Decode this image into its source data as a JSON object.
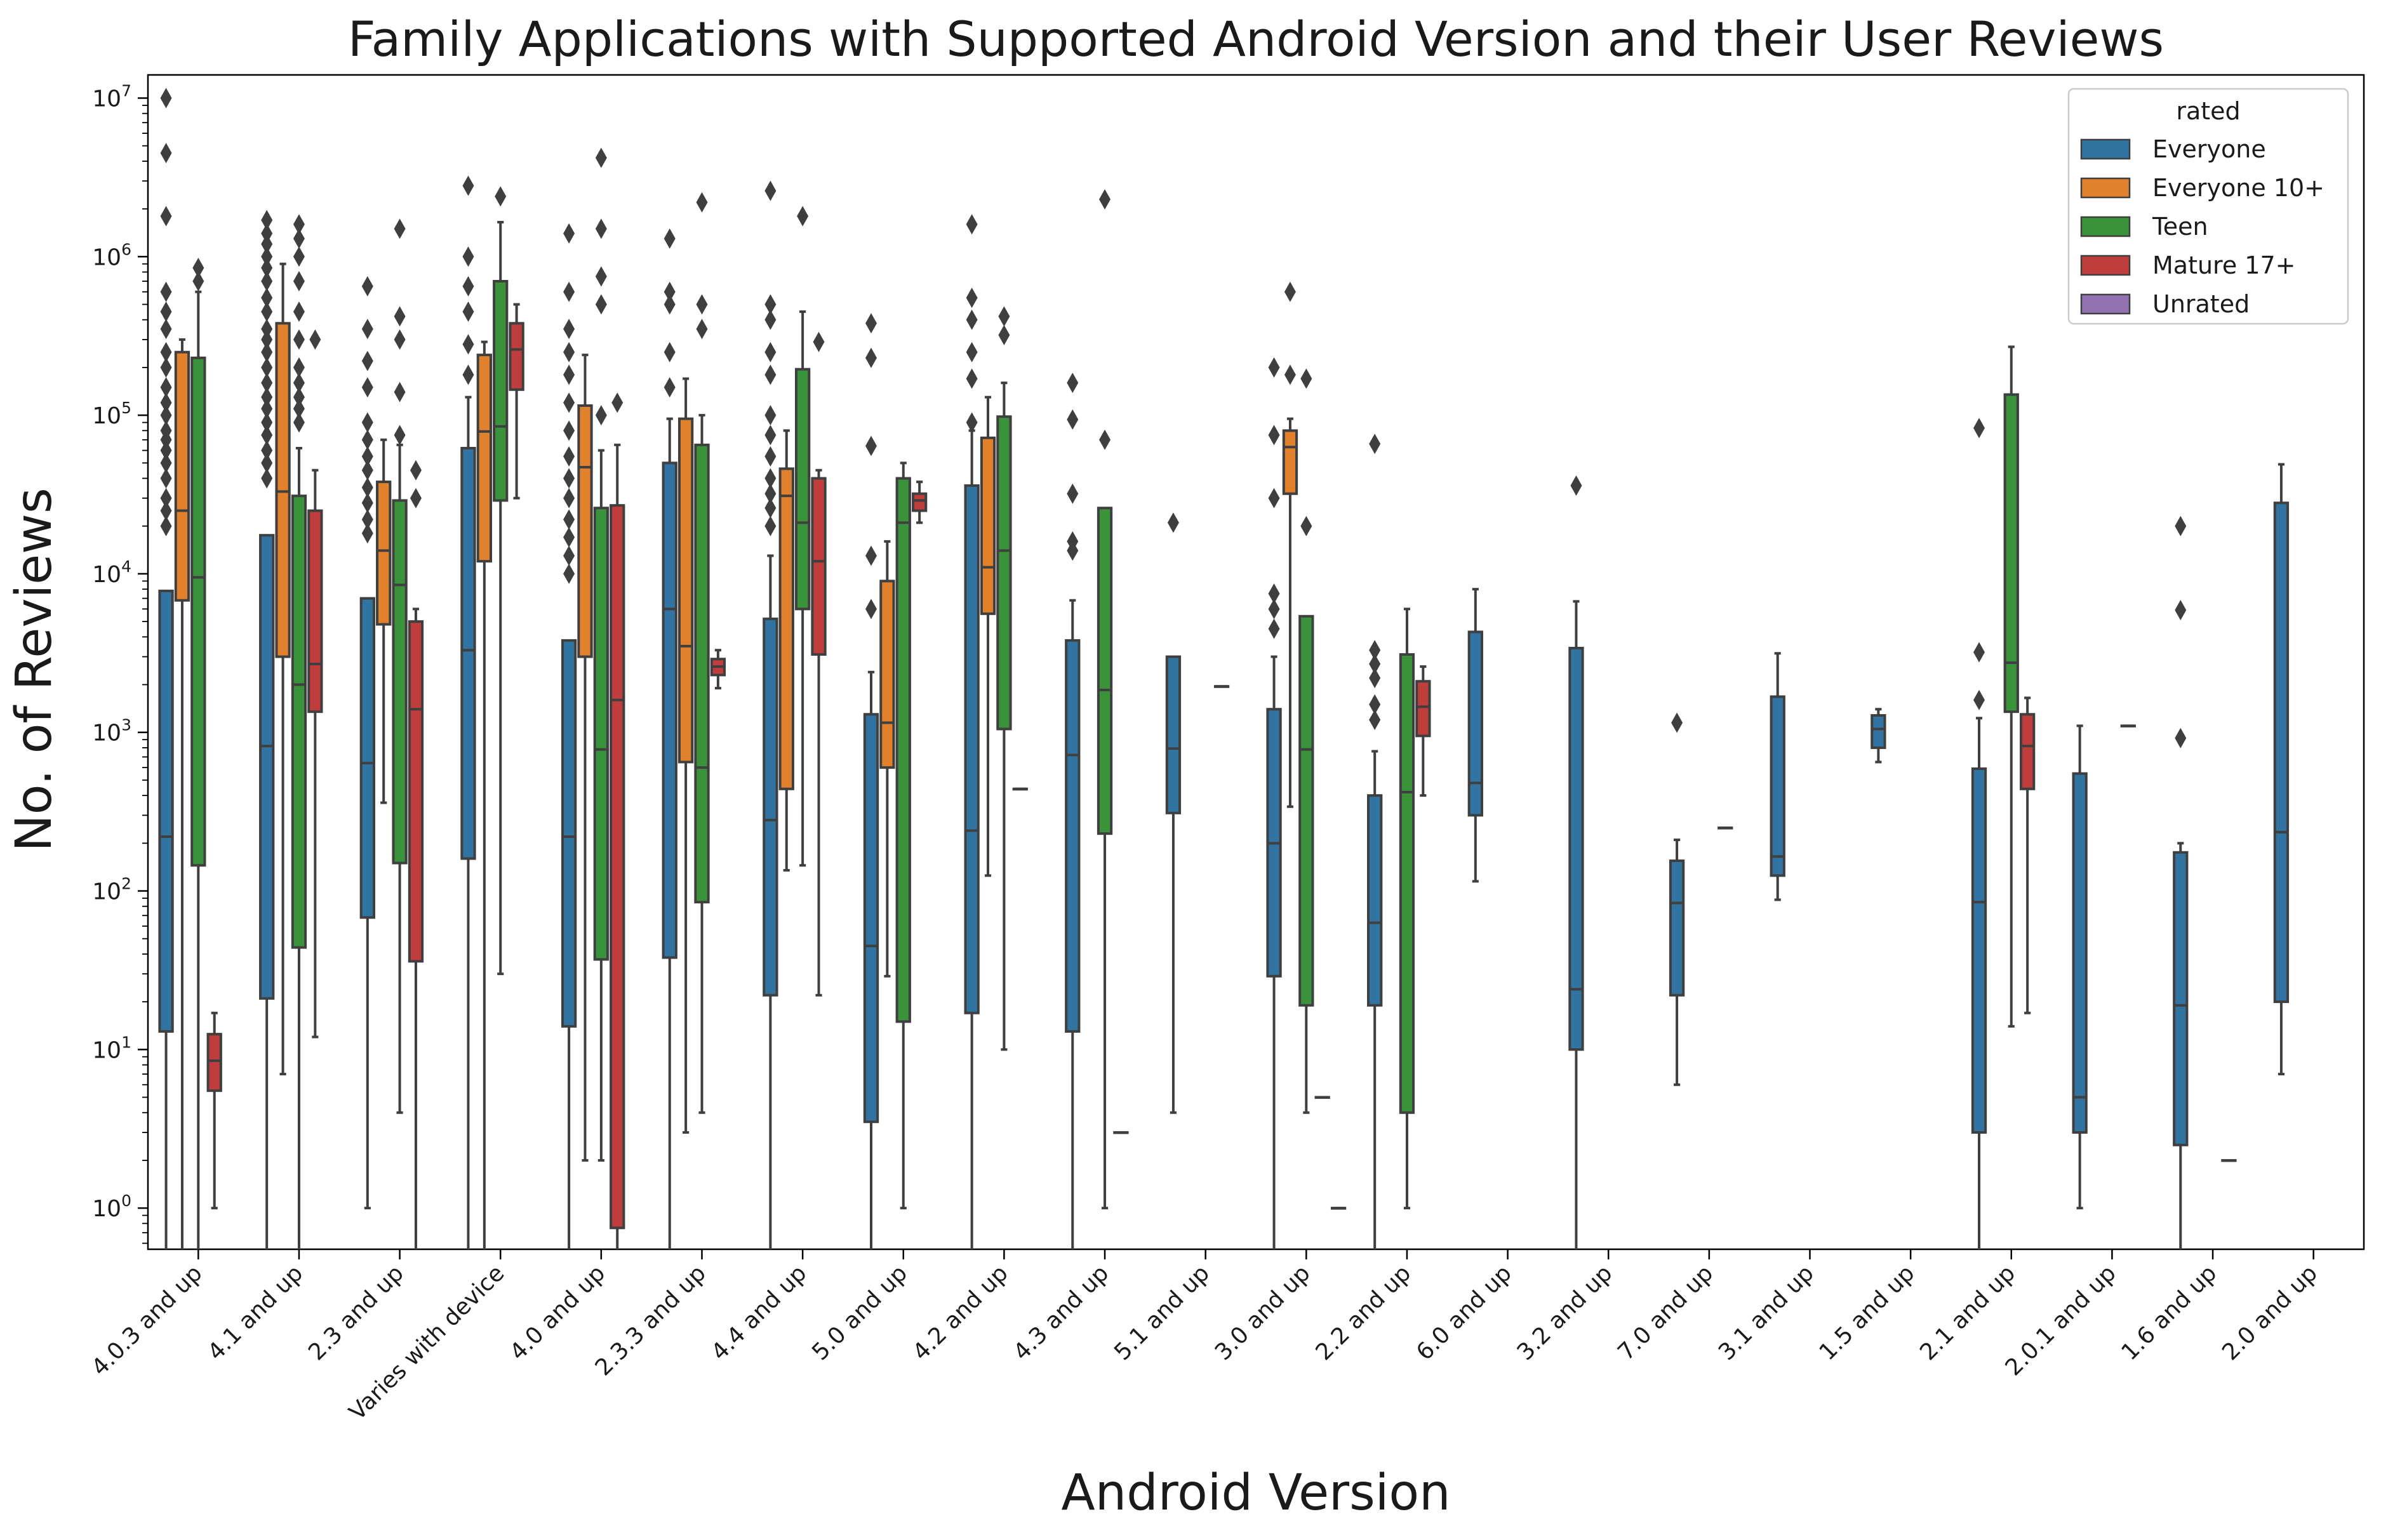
{
  "chart_data": {
    "type": "box",
    "title": "Family Applications with Supported Android Version and their User Reviews",
    "xlabel": "Android Version",
    "ylabel": "No. of Reviews",
    "yscale": "log",
    "ylim": [
      0.55,
      14000000
    ],
    "yticks": [
      {
        "value": 1,
        "base": "10",
        "exp": "0"
      },
      {
        "value": 10,
        "base": "10",
        "exp": "1"
      },
      {
        "value": 100,
        "base": "10",
        "exp": "2"
      },
      {
        "value": 1000,
        "base": "10",
        "exp": "3"
      },
      {
        "value": 10000,
        "base": "10",
        "exp": "4"
      },
      {
        "value": 100000,
        "base": "10",
        "exp": "5"
      },
      {
        "value": 1000000,
        "base": "10",
        "exp": "6"
      },
      {
        "value": 10000000,
        "base": "10",
        "exp": "7"
      }
    ],
    "legend": {
      "title": "rated",
      "position": "upper right"
    },
    "categories": [
      "4.0.3 and up",
      "4.1 and up",
      "2.3 and up",
      "Varies with device",
      "4.0 and up",
      "2.3.3 and up",
      "4.4 and up",
      "5.0 and up",
      "4.2 and up",
      "4.3 and up",
      "5.1 and up",
      "3.0 and up",
      "2.2 and up",
      "6.0 and up",
      "3.2 and up",
      "7.0 and up",
      "3.1 and up",
      "1.5 and up",
      "2.1 and up",
      "2.0.1 and up",
      "1.6 and up",
      "2.0 and up"
    ],
    "series": [
      {
        "name": "Everyone",
        "color": "#3274a1",
        "boxes": [
          {
            "wl": 0.5,
            "q1": 13,
            "med": 220,
            "q3": 7800,
            "wh": 7800,
            "fliers": [
              20000,
              25000,
              30000,
              40000,
              50000,
              60000,
              70000,
              80000,
              100000,
              120000,
              150000,
              200000,
              250000,
              350000,
              450000,
              600000,
              1800000,
              4500000,
              10000000
            ]
          },
          {
            "wl": 0.5,
            "q1": 21,
            "med": 820,
            "q3": 17500,
            "wh": 17500,
            "fliers": [
              40000,
              50000,
              60000,
              75000,
              90000,
              110000,
              130000,
              160000,
              200000,
              250000,
              300000,
              350000,
              450000,
              550000,
              700000,
              850000,
              1000000,
              1200000,
              1400000,
              1700000
            ]
          },
          {
            "wl": 1,
            "q1": 68,
            "med": 640,
            "q3": 7000,
            "wh": 7000,
            "fliers": [
              18000,
              22000,
              28000,
              35000,
              45000,
              55000,
              70000,
              90000,
              150000,
              220000,
              350000,
              650000
            ]
          },
          {
            "wl": 0.5,
            "q1": 160,
            "med": 3300,
            "q3": 62000,
            "wh": 130000,
            "fliers": [
              180000,
              280000,
              450000,
              650000,
              1000000,
              2800000
            ]
          },
          {
            "wl": 0.5,
            "q1": 14,
            "med": 220,
            "q3": 3800,
            "wh": 3800,
            "fliers": [
              10000,
              13000,
              17000,
              22000,
              30000,
              40000,
              55000,
              80000,
              120000,
              180000,
              250000,
              350000,
              600000,
              1400000
            ]
          },
          {
            "wl": 0.5,
            "q1": 38,
            "med": 6000,
            "q3": 50000,
            "wh": 95000,
            "fliers": [
              150000,
              250000,
              500000,
              600000,
              1300000
            ]
          },
          {
            "wl": 0.5,
            "q1": 22,
            "med": 280,
            "q3": 5200,
            "wh": 13000,
            "fliers": [
              20000,
              26000,
              32000,
              40000,
              55000,
              75000,
              100000,
              180000,
              250000,
              400000,
              500000,
              2600000
            ]
          },
          {
            "wl": 0.5,
            "q1": 3.5,
            "med": 45,
            "q3": 1300,
            "wh": 2400,
            "fliers": [
              6000,
              13000,
              64000,
              230000,
              380000
            ]
          },
          {
            "wl": 0.5,
            "q1": 17,
            "med": 240,
            "q3": 36000,
            "wh": 80000,
            "fliers": [
              90000,
              170000,
              250000,
              400000,
              550000,
              1600000
            ]
          },
          {
            "wl": 0.5,
            "q1": 13,
            "med": 720,
            "q3": 3800,
            "wh": 6800,
            "fliers": [
              14000,
              16000,
              32000,
              94000,
              160000
            ]
          },
          {
            "wl": 4,
            "q1": 310,
            "med": 790,
            "q3": 3000,
            "wh": 3000,
            "fliers": [
              21000
            ]
          },
          {
            "wl": 0.5,
            "q1": 29,
            "med": 200,
            "q3": 1400,
            "wh": 3000,
            "fliers": [
              4500,
              6000,
              7500,
              30000,
              75000,
              200000
            ]
          },
          {
            "wl": 0.5,
            "q1": 19,
            "med": 63,
            "q3": 400,
            "wh": 760,
            "fliers": [
              1200,
              1500,
              2200,
              2700,
              3300,
              66000
            ]
          },
          {
            "wl": 115,
            "q1": 300,
            "med": 480,
            "q3": 4300,
            "wh": 8000,
            "fliers": []
          },
          {
            "wl": 0.5,
            "q1": 10,
            "med": 24,
            "q3": 3400,
            "wh": 6700,
            "fliers": [
              36000
            ]
          },
          {
            "wl": 6,
            "q1": 22,
            "med": 84,
            "q3": 155,
            "wh": 210,
            "fliers": [
              1150
            ]
          },
          {
            "wl": 88,
            "q1": 125,
            "med": 165,
            "q3": 1680,
            "wh": 3150,
            "fliers": []
          },
          {
            "wl": 650,
            "q1": 800,
            "med": 1050,
            "q3": 1280,
            "wh": 1400,
            "fliers": []
          },
          {
            "wl": 0.5,
            "q1": 3,
            "med": 85,
            "q3": 590,
            "wh": 1230,
            "fliers": [
              1600,
              3200,
              83000
            ]
          },
          {
            "wl": 1,
            "q1": 3,
            "med": 5,
            "q3": 550,
            "wh": 1100,
            "fliers": []
          },
          {
            "wl": 0.5,
            "q1": 2.5,
            "med": 19,
            "q3": 175,
            "wh": 200,
            "fliers": [
              920,
              5900,
              20000
            ]
          },
          {
            "wl": 7,
            "q1": 20,
            "med": 235,
            "q3": 28000,
            "wh": 49000,
            "fliers": []
          }
        ]
      },
      {
        "name": "Everyone 10+",
        "color": "#e1812c",
        "boxes": [
          {
            "wl": 0.5,
            "q1": 6800,
            "med": 25000,
            "q3": 250000,
            "wh": 300000,
            "fliers": []
          },
          {
            "wl": 7,
            "q1": 3000,
            "med": 33000,
            "q3": 380000,
            "wh": 900000,
            "fliers": []
          },
          {
            "wl": 360,
            "q1": 4800,
            "med": 14000,
            "q3": 38000,
            "wh": 70000,
            "fliers": []
          },
          {
            "wl": 0.5,
            "q1": 12000,
            "med": 79000,
            "q3": 240000,
            "wh": 290000,
            "fliers": []
          },
          {
            "wl": 2,
            "q1": 3000,
            "med": 47000,
            "q3": 115000,
            "wh": 240000,
            "fliers": []
          },
          {
            "wl": 3,
            "q1": 650,
            "med": 3500,
            "q3": 95000,
            "wh": 170000,
            "fliers": []
          },
          {
            "wl": 135,
            "q1": 440,
            "med": 31000,
            "q3": 46000,
            "wh": 80000,
            "fliers": []
          },
          {
            "wl": 29,
            "q1": 600,
            "med": 1150,
            "q3": 9000,
            "wh": 16000,
            "fliers": []
          },
          {
            "wl": 125,
            "q1": 5600,
            "med": 11000,
            "q3": 72000,
            "wh": 130000,
            "fliers": []
          },
          null,
          null,
          {
            "wl": 340,
            "q1": 32000,
            "med": 63000,
            "q3": 80000,
            "wh": 95000,
            "fliers": [
              180000,
              600000
            ]
          },
          null,
          null,
          null,
          null,
          null,
          null,
          null,
          null,
          null,
          null
        ]
      },
      {
        "name": "Teen",
        "color": "#3a923a",
        "boxes": [
          {
            "wl": 0.5,
            "q1": 145,
            "med": 9500,
            "q3": 230000,
            "wh": 600000,
            "fliers": [
              700000,
              850000
            ]
          },
          {
            "wl": 0.5,
            "q1": 44,
            "med": 2000,
            "q3": 31000,
            "wh": 62000,
            "fliers": [
              90000,
              110000,
              130000,
              160000,
              200000,
              300000,
              450000,
              700000,
              1000000,
              1300000,
              1600000
            ]
          },
          {
            "wl": 4,
            "q1": 150,
            "med": 8500,
            "q3": 29000,
            "wh": 65000,
            "fliers": [
              75000,
              140000,
              300000,
              420000,
              1500000
            ]
          },
          {
            "wl": 30,
            "q1": 29000,
            "med": 85000,
            "q3": 700000,
            "wh": 1650000,
            "fliers": [
              2400000
            ]
          },
          {
            "wl": 2,
            "q1": 37,
            "med": 780,
            "q3": 26000,
            "wh": 60000,
            "fliers": [
              100000,
              500000,
              750000,
              1500000,
              4200000
            ]
          },
          {
            "wl": 4,
            "q1": 85,
            "med": 600,
            "q3": 65000,
            "wh": 100000,
            "fliers": [
              350000,
              500000,
              2200000
            ]
          },
          {
            "wl": 145,
            "q1": 6000,
            "med": 21000,
            "q3": 195000,
            "wh": 450000,
            "fliers": [
              1800000
            ]
          },
          {
            "wl": 1,
            "q1": 15,
            "med": 21000,
            "q3": 40000,
            "wh": 50000,
            "fliers": []
          },
          {
            "wl": 10,
            "q1": 1050,
            "med": 14000,
            "q3": 98000,
            "wh": 160000,
            "fliers": [
              320000,
              420000
            ]
          },
          {
            "wl": 1,
            "q1": 230,
            "med": 1850,
            "q3": 26000,
            "wh": 26000,
            "fliers": [
              70000,
              2300000
            ]
          },
          null,
          {
            "wl": 4,
            "q1": 19,
            "med": 780,
            "q3": 5400,
            "wh": 5400,
            "fliers": [
              20000,
              170000
            ]
          },
          {
            "wl": 1,
            "q1": 4,
            "med": 420,
            "q3": 3100,
            "wh": 6000,
            "fliers": []
          },
          null,
          null,
          null,
          null,
          null,
          {
            "wl": 14,
            "q1": 1350,
            "med": 2750,
            "q3": 135000,
            "wh": 270000,
            "fliers": []
          },
          null,
          null,
          null
        ]
      },
      {
        "name": "Mature 17+",
        "color": "#c03d3e",
        "boxes": [
          {
            "wl": 1,
            "q1": 5.5,
            "med": 8.5,
            "q3": 12.5,
            "wh": 17,
            "fliers": []
          },
          {
            "wl": 12,
            "q1": 1350,
            "med": 2700,
            "q3": 25000,
            "wh": 45000,
            "fliers": [
              300000
            ]
          },
          {
            "wl": 0.5,
            "q1": 36,
            "med": 1400,
            "q3": 5000,
            "wh": 6000,
            "fliers": [
              30000,
              45000
            ]
          },
          {
            "wl": 30000,
            "q1": 145000,
            "med": 260000,
            "q3": 380000,
            "wh": 500000,
            "fliers": []
          },
          {
            "wl": 0.5,
            "q1": 0.75,
            "med": 1600,
            "q3": 27000,
            "wh": 65000,
            "fliers": [
              120000
            ]
          },
          {
            "wl": 1900,
            "q1": 2300,
            "med": 2600,
            "q3": 2900,
            "wh": 3300,
            "fliers": []
          },
          {
            "wl": 22,
            "q1": 3100,
            "med": 12000,
            "q3": 40000,
            "wh": 45000,
            "fliers": [
              290000
            ]
          },
          {
            "wl": 21000,
            "q1": 25000,
            "med": 29000,
            "q3": 32000,
            "wh": 38000,
            "fliers": []
          },
          {
            "wl": 440,
            "q1": 440,
            "med": 440,
            "q3": 440,
            "wh": 440,
            "fliers": []
          },
          {
            "wl": 3,
            "q1": 3,
            "med": 3,
            "q3": 3,
            "wh": 3,
            "fliers": []
          },
          {
            "wl": 1950,
            "q1": 1950,
            "med": 1950,
            "q3": 1950,
            "wh": 1950,
            "fliers": []
          },
          {
            "wl": 5,
            "q1": 5,
            "med": 5,
            "q3": 5,
            "wh": 5,
            "fliers": []
          },
          {
            "wl": 400,
            "q1": 950,
            "med": 1450,
            "q3": 2100,
            "wh": 2600,
            "fliers": []
          },
          null,
          null,
          {
            "wl": 250,
            "q1": 250,
            "med": 250,
            "q3": 250,
            "wh": 250,
            "fliers": []
          },
          null,
          null,
          {
            "wl": 17,
            "q1": 440,
            "med": 820,
            "q3": 1300,
            "wh": 1650,
            "fliers": []
          },
          {
            "wl": 1100,
            "q1": 1100,
            "med": 1100,
            "q3": 1100,
            "wh": 1100,
            "fliers": []
          },
          {
            "wl": 2,
            "q1": 2,
            "med": 2,
            "q3": 2,
            "wh": 2,
            "fliers": []
          },
          null
        ]
      },
      {
        "name": "Unrated",
        "color": "#9372b2",
        "boxes": [
          null,
          null,
          null,
          null,
          null,
          null,
          null,
          null,
          null,
          null,
          null,
          {
            "wl": 1,
            "q1": 1,
            "med": 1,
            "q3": 1,
            "wh": 1,
            "fliers": []
          },
          null,
          null,
          null,
          null,
          null,
          null,
          null,
          null,
          null,
          null
        ]
      }
    ]
  }
}
